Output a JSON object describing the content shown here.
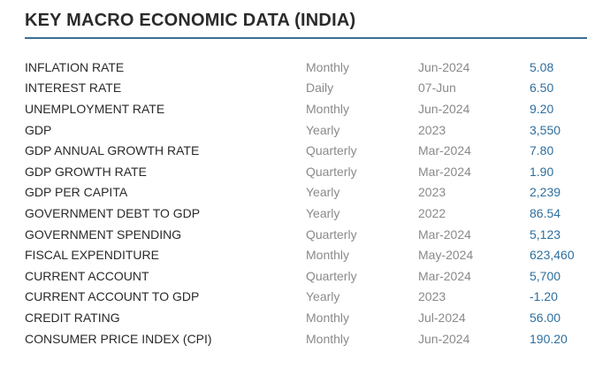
{
  "title": "KEY MACRO ECONOMIC DATA (INDIA)",
  "colors": {
    "accent": "#3a6f95",
    "value": "#2e6f9e",
    "muted": "#8a8a8a",
    "text": "#2a2a2a"
  },
  "rows": [
    {
      "name": "INFLATION RATE",
      "frequency": "Monthly",
      "period": "Jun-2024",
      "value": "5.08"
    },
    {
      "name": "INTEREST RATE",
      "frequency": "Daily",
      "period": "07-Jun",
      "value": "6.50"
    },
    {
      "name": "UNEMPLOYMENT RATE",
      "frequency": "Monthly",
      "period": "Jun-2024",
      "value": "9.20"
    },
    {
      "name": "GDP",
      "frequency": "Yearly",
      "period": "2023",
      "value": "3,550"
    },
    {
      "name": "GDP ANNUAL GROWTH RATE",
      "frequency": "Quarterly",
      "period": "Mar-2024",
      "value": "7.80"
    },
    {
      "name": "GDP GROWTH RATE",
      "frequency": "Quarterly",
      "period": "Mar-2024",
      "value": "1.90"
    },
    {
      "name": "GDP PER CAPITA",
      "frequency": "Yearly",
      "period": "2023",
      "value": "2,239"
    },
    {
      "name": "GOVERNMENT DEBT TO GDP",
      "frequency": "Yearly",
      "period": "2022",
      "value": "86.54"
    },
    {
      "name": "GOVERNMENT SPENDING",
      "frequency": "Quarterly",
      "period": "Mar-2024",
      "value": "5,123"
    },
    {
      "name": "FISCAL EXPENDITURE",
      "frequency": "Monthly",
      "period": "May-2024",
      "value": "623,460"
    },
    {
      "name": "CURRENT ACCOUNT",
      "frequency": "Quarterly",
      "period": "Mar-2024",
      "value": "5,700"
    },
    {
      "name": "CURRENT ACCOUNT TO GDP",
      "frequency": "Yearly",
      "period": "2023",
      "value": "-1.20"
    },
    {
      "name": "CREDIT RATING",
      "frequency": "Monthly",
      "period": "Jul-2024",
      "value": "56.00"
    },
    {
      "name": "CONSUMER PRICE INDEX (CPI)",
      "frequency": "Monthly",
      "period": "Jun-2024",
      "value": "190.20"
    }
  ]
}
